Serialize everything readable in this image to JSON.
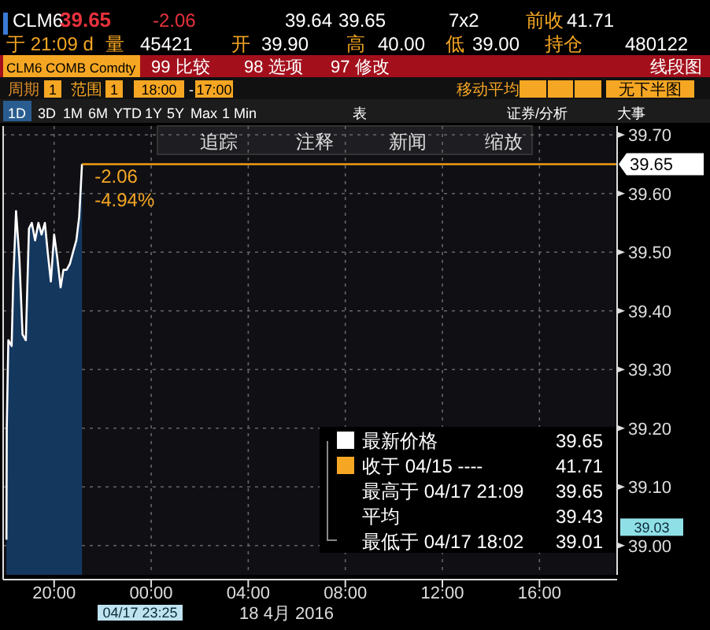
{
  "chart_data": {
    "type": "area",
    "xlim": [
      "2016-04-17T17:54",
      "2016-04-18T19:12"
    ],
    "ylim": [
      38.95,
      39.715
    ],
    "xticks": [
      {
        "value": "2016-04-17T20:00",
        "label": "20:00"
      },
      {
        "value": "2016-04-18T00:00",
        "label": "00:00"
      },
      {
        "value": "2016-04-18T04:00",
        "label": "04:00"
      },
      {
        "value": "2016-04-18T08:00",
        "label": "08:00"
      },
      {
        "value": "2016-04-18T12:00",
        "label": "12:00"
      },
      {
        "value": "2016-04-18T16:00",
        "label": "16:00"
      }
    ],
    "yticks": [
      {
        "value": 39.0,
        "label": "39.00"
      },
      {
        "value": 39.1,
        "label": "39.10"
      },
      {
        "value": 39.2,
        "label": "39.20"
      },
      {
        "value": 39.3,
        "label": "39.30"
      },
      {
        "value": 39.4,
        "label": "39.40"
      },
      {
        "value": 39.5,
        "label": "39.50"
      },
      {
        "value": 39.6,
        "label": "39.60"
      },
      {
        "value": 39.7,
        "label": "39.70"
      }
    ],
    "grid": true,
    "legend": "bottom right",
    "series": [
      {
        "name": "最新价格",
        "color": "#ffffff",
        "x": [
          "2016-04-17T18:02",
          "2016-04-17T18:03",
          "2016-04-17T18:07",
          "2016-04-17T18:15",
          "2016-04-17T18:19",
          "2016-04-17T18:26",
          "2016-04-17T18:34",
          "2016-04-17T18:42",
          "2016-04-17T18:50",
          "2016-04-17T18:58",
          "2016-04-17T19:05",
          "2016-04-17T19:13",
          "2016-04-17T19:21",
          "2016-04-17T19:29",
          "2016-04-17T19:37",
          "2016-04-17T19:44",
          "2016-04-17T19:52",
          "2016-04-17T20:00",
          "2016-04-17T20:08",
          "2016-04-17T20:16",
          "2016-04-17T20:23",
          "2016-04-17T20:31",
          "2016-04-17T20:39",
          "2016-04-17T20:47",
          "2016-04-17T20:55",
          "2016-04-17T21:02",
          "2016-04-17T21:09"
        ],
        "values": [
          39.01,
          39.2,
          39.35,
          39.34,
          39.45,
          39.57,
          39.49,
          39.36,
          39.35,
          39.54,
          39.55,
          39.52,
          39.55,
          39.53,
          39.55,
          39.5,
          39.45,
          39.53,
          39.49,
          39.44,
          39.47,
          39.47,
          39.48,
          39.5,
          39.52,
          39.56,
          39.65
        ]
      }
    ],
    "ref_lines": [
      {
        "axis": "y",
        "value": 39.65,
        "label": "39.65",
        "color": "#f39c12"
      }
    ],
    "annotations": [
      "CLM6",
      "39.65",
      "-2.06",
      "39.64",
      "39.65",
      "7x2",
      "前收",
      "41.71",
      "于 21:09 d",
      "量",
      "45421",
      "开",
      "39.90",
      "高",
      "40.00",
      "低",
      "39.00",
      "持仓",
      "480122",
      "CLM6 COMB Comdty",
      "99 比较",
      "98 选项",
      "97 修改",
      "线段图",
      "周期",
      "1",
      "范围",
      "1",
      "18:00",
      "-",
      "17:00",
      "移动平均",
      "无下半图",
      "1D",
      "3D",
      "1M",
      "6M",
      "YTD",
      "1Y",
      "5Y",
      "Max",
      "1 Min",
      "表",
      "证券/分析",
      "大事",
      "追踪",
      "注释",
      "新闻",
      "缩放",
      {
        "text": "-2.06",
        "x": "2016-04-17T21:09",
        "y": 39.65
      },
      {
        "text": "-4.94%",
        "x": "2016-04-17T21:09",
        "y": 39.65
      },
      "收于 04/15 ----",
      "41.71",
      "最高于 04/17 21:09",
      "39.65",
      "平均",
      "39.43",
      "最低于 04/17 18:02",
      "39.01",
      "39.65",
      "04/17 23:25",
      "18 4月 2016",
      "39.03"
    ]
  }
}
